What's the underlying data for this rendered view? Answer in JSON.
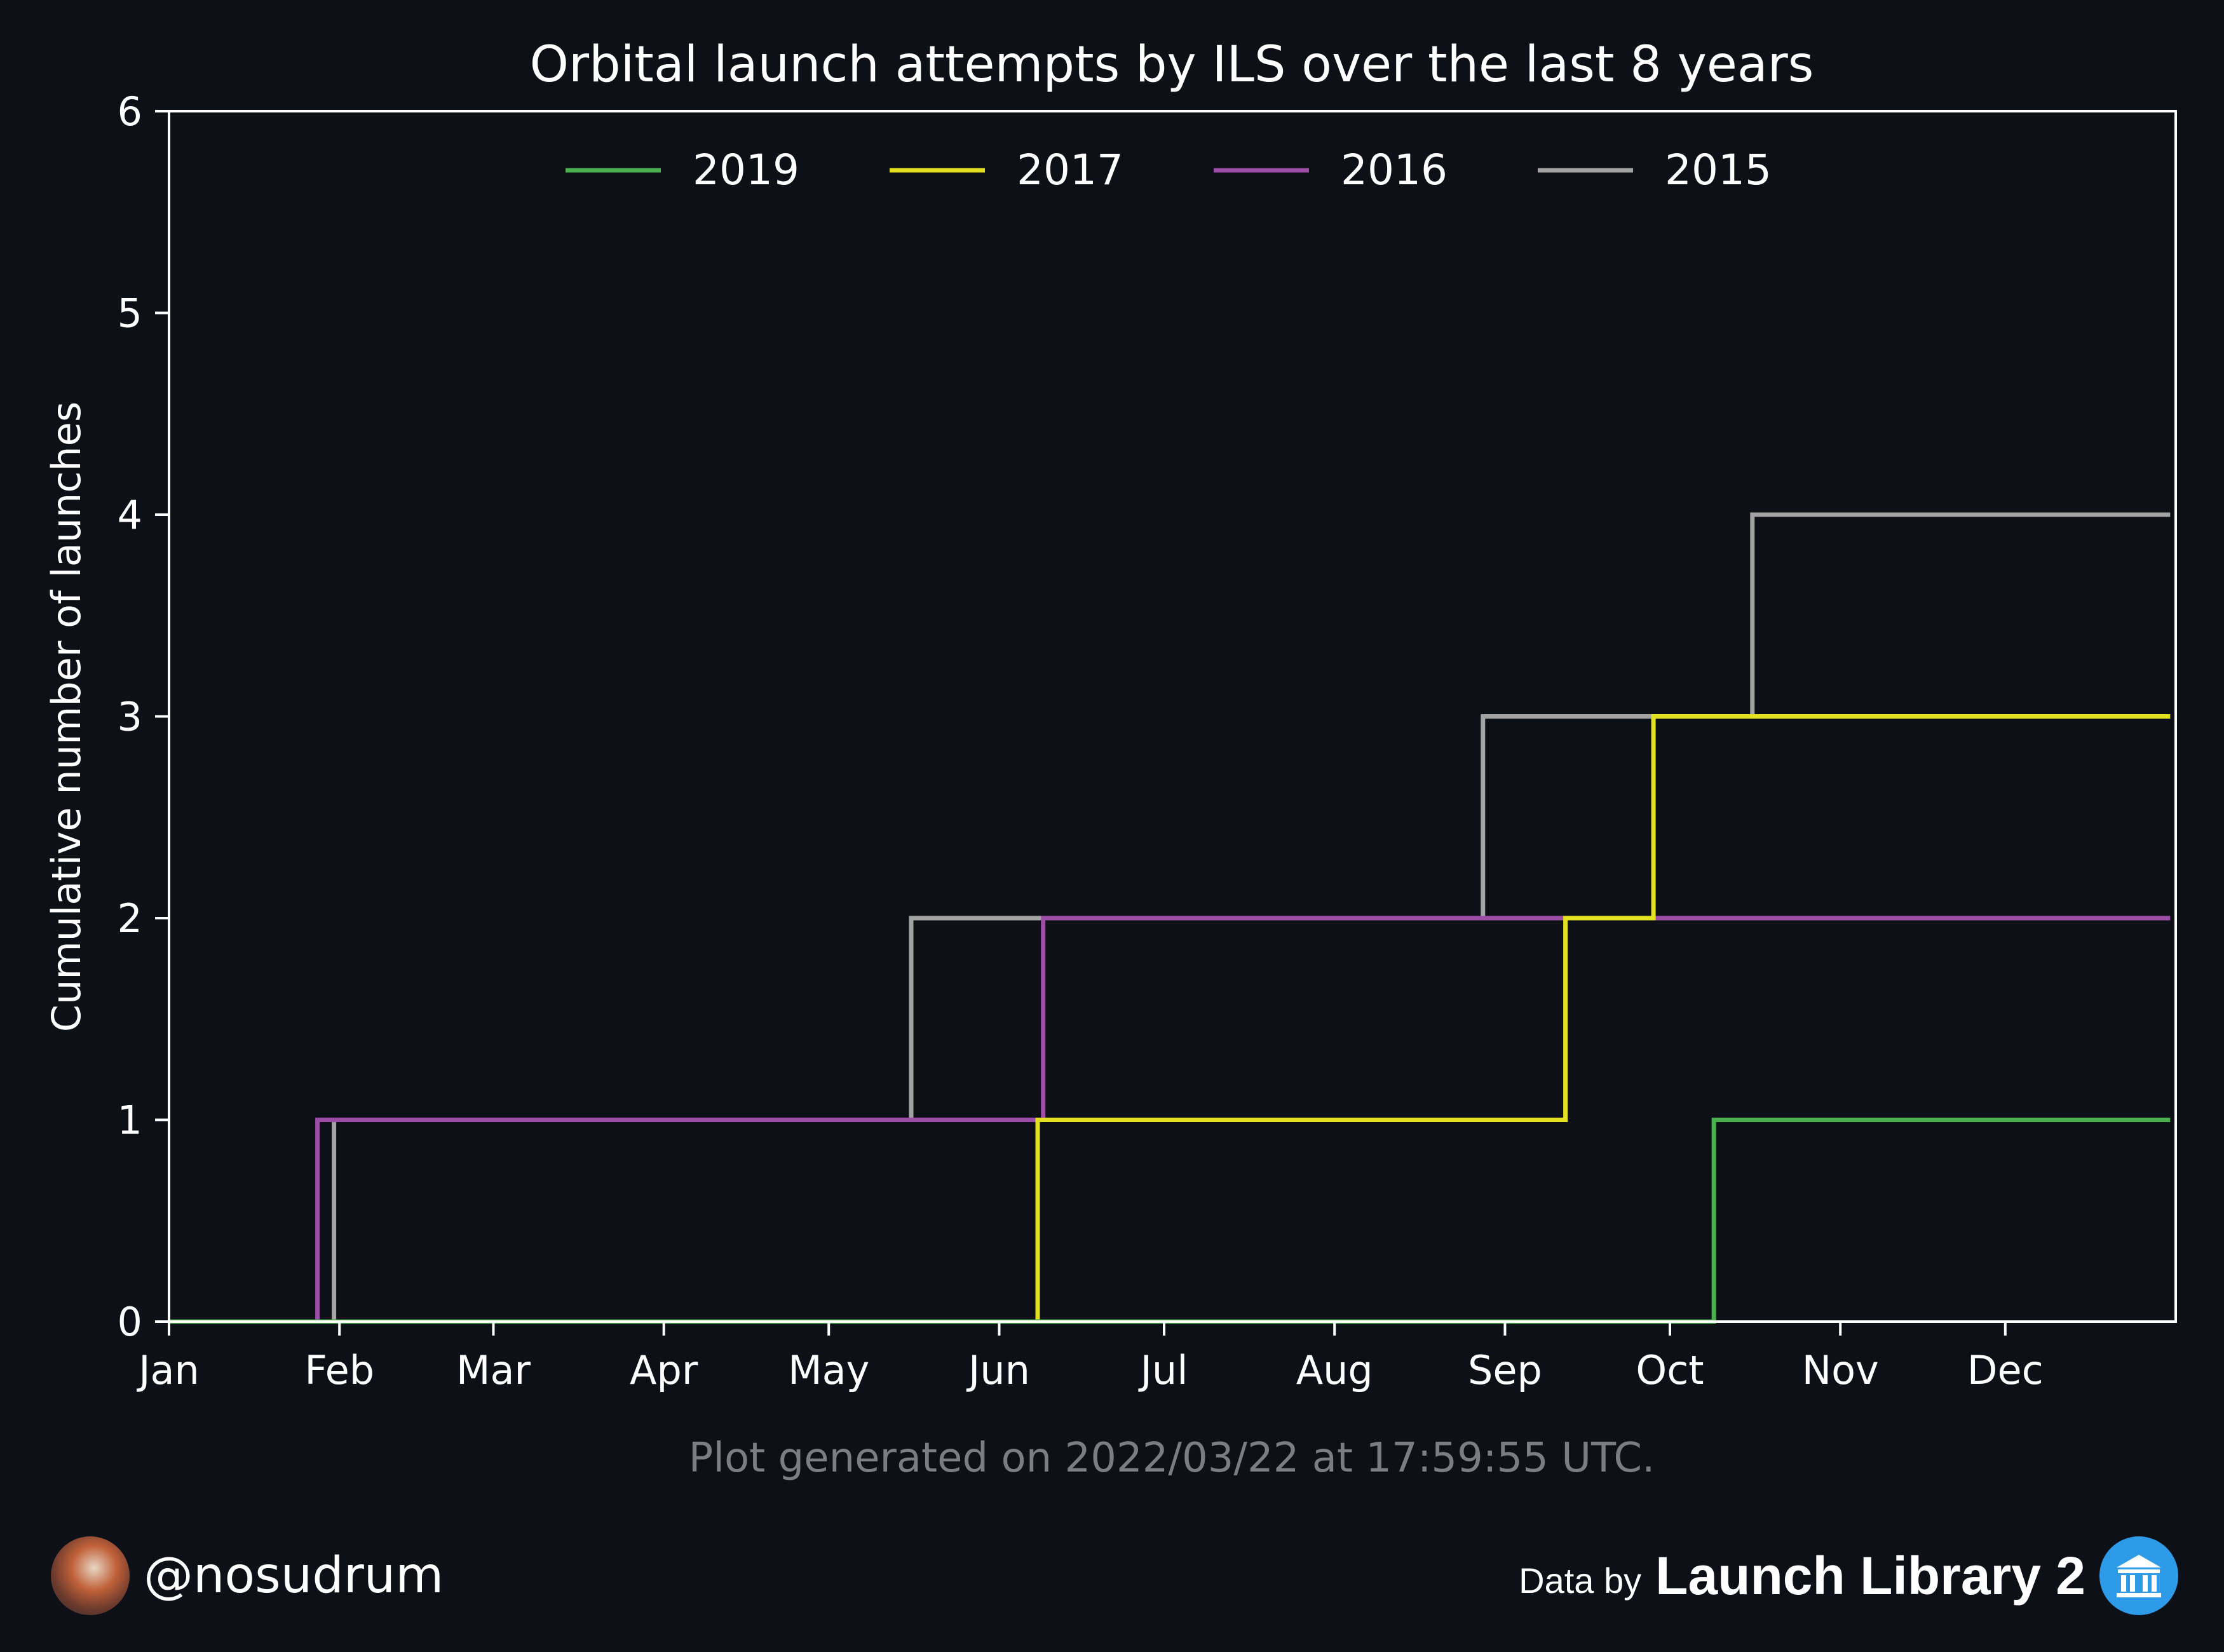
{
  "colors": {
    "background": "#0d1017",
    "axes": "#ffffff",
    "footnote": "#7a7d82"
  },
  "chart_data": {
    "type": "line",
    "drawstyle": "steps-post",
    "title": "Orbital launch attempts by ILS over the last 8 years",
    "xlabel": "",
    "ylabel": "Cumulative number of launches",
    "x_ticks": [
      "Jan",
      "Feb",
      "Mar",
      "Apr",
      "May",
      "Jun",
      "Jul",
      "Aug",
      "Sep",
      "Oct",
      "Nov",
      "Dec"
    ],
    "x_tick_days": [
      1,
      32,
      60,
      91,
      121,
      152,
      182,
      213,
      244,
      274,
      305,
      335
    ],
    "xlim_days": [
      1,
      366
    ],
    "ylim": [
      0,
      6
    ],
    "y_ticks": [
      0,
      1,
      2,
      3,
      4,
      5,
      6
    ],
    "grid": false,
    "legend_position": "top-center",
    "series": [
      {
        "name": "2019",
        "color": "#4caf50",
        "points": [
          {
            "date": "01-01",
            "y": 0
          },
          {
            "date": "10-09",
            "y": 1
          },
          {
            "date": "12-31",
            "y": 1
          }
        ]
      },
      {
        "name": "2017",
        "color": "#e3e01f",
        "points": [
          {
            "date": "01-01",
            "y": 0
          },
          {
            "date": "06-08",
            "y": 1
          },
          {
            "date": "09-12",
            "y": 2
          },
          {
            "date": "09-28",
            "y": 3
          },
          {
            "date": "12-31",
            "y": 3
          }
        ]
      },
      {
        "name": "2016",
        "color": "#9c4ea6",
        "points": [
          {
            "date": "01-01",
            "y": 0
          },
          {
            "date": "01-28",
            "y": 1
          },
          {
            "date": "06-09",
            "y": 2
          },
          {
            "date": "12-31",
            "y": 2
          }
        ]
      },
      {
        "name": "2015",
        "color": "#a3a3a3",
        "points": [
          {
            "date": "01-01",
            "y": 0
          },
          {
            "date": "01-31",
            "y": 1
          },
          {
            "date": "05-16",
            "y": 2
          },
          {
            "date": "08-28",
            "y": 3
          },
          {
            "date": "10-16",
            "y": 4
          },
          {
            "date": "12-31",
            "y": 4
          }
        ]
      }
    ]
  },
  "footnote": "Plot generated on 2022/03/22 at 17:59:55 UTC.",
  "footer": {
    "handle": "@nosudrum",
    "data_by": "Data by",
    "provider": "Launch Library 2"
  }
}
